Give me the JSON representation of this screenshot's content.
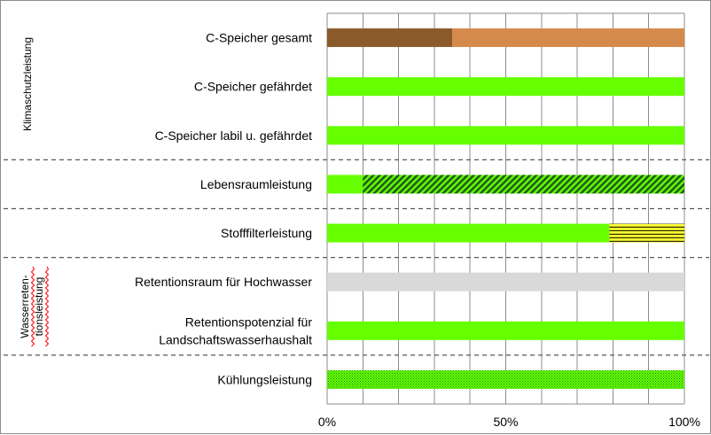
{
  "chart_data": {
    "type": "bar",
    "orientation": "horizontal",
    "stacked": true,
    "grid": true,
    "legend": "none",
    "xlim": [
      0,
      100
    ],
    "xticks": [
      "0%",
      "50%",
      "100%"
    ],
    "groups": [
      {
        "label": "Klimaschutzleistung"
      },
      {
        "label_lines": [
          "Wasserreten-",
          "tionsleistung"
        ]
      }
    ],
    "categories": [
      {
        "lines": [
          "C-Speicher gesamt"
        ],
        "segments": [
          {
            "value": 35,
            "color": "#8b5a2b",
            "pattern": "solid"
          },
          {
            "value": 65,
            "color": "#d58a4b",
            "pattern": "solid"
          }
        ]
      },
      {
        "lines": [
          "C-Speicher gefährdet"
        ],
        "segments": [
          {
            "value": 100,
            "color": "#66ff00",
            "pattern": "solid"
          }
        ]
      },
      {
        "lines": [
          "C-Speicher labil u. gefährdet"
        ],
        "segments": [
          {
            "value": 100,
            "color": "#66ff00",
            "pattern": "solid"
          }
        ]
      },
      {
        "lines": [
          "Lebensraumleistung"
        ],
        "segments": [
          {
            "value": 10,
            "color": "#66ff00",
            "pattern": "solid"
          },
          {
            "value": 90,
            "color": "#1f6b1f",
            "pattern": "hatch"
          }
        ]
      },
      {
        "lines": [
          "Stofffilterleistung"
        ],
        "segments": [
          {
            "value": 79,
            "color": "#66ff00",
            "pattern": "solid"
          },
          {
            "value": 21,
            "color": "#ffff33",
            "pattern": "hlines"
          }
        ]
      },
      {
        "lines": [
          "Retentionsraum für Hochwasser"
        ],
        "segments": [
          {
            "value": 100,
            "color": "#d9d9d9",
            "pattern": "solid"
          }
        ]
      },
      {
        "lines": [
          "Retentionspotenzial für",
          "Landschaftswasserhaushalt"
        ],
        "segments": [
          {
            "value": 100,
            "color": "#66ff00",
            "pattern": "solid"
          }
        ]
      },
      {
        "lines": [
          "Kühlungsleistung"
        ],
        "segments": [
          {
            "value": 100,
            "color": "#66ff00",
            "pattern": "dots"
          }
        ]
      }
    ]
  }
}
